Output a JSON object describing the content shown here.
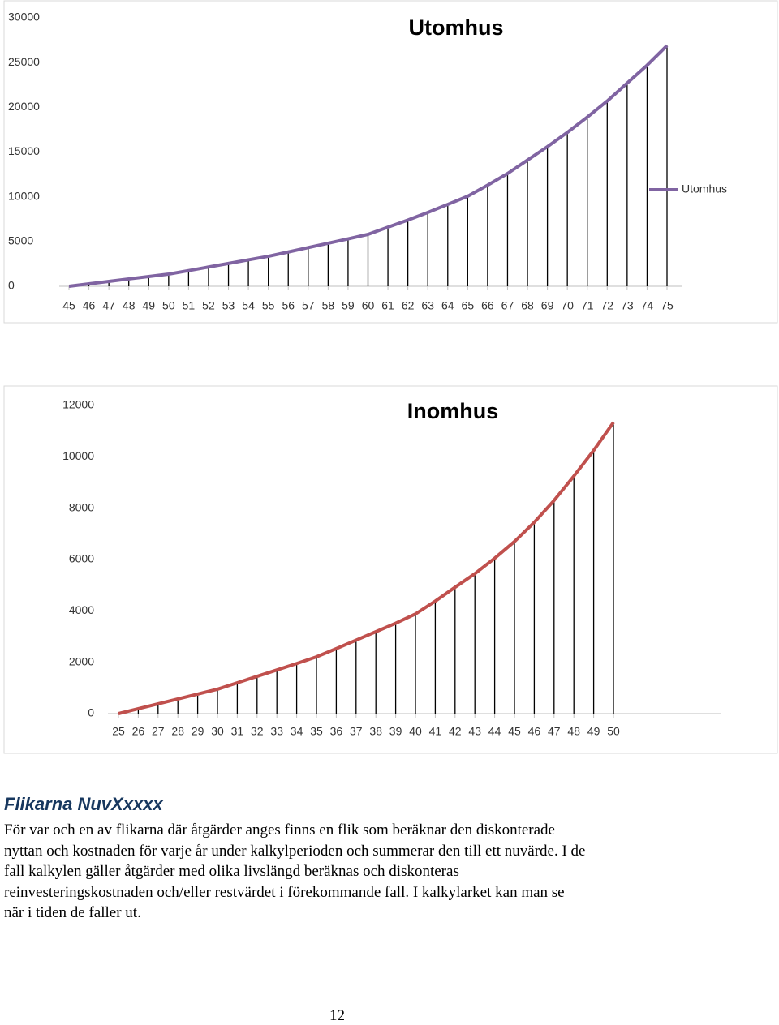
{
  "chart_data": [
    {
      "type": "line",
      "title": "Utomhus",
      "categories": [
        "45",
        "46",
        "47",
        "48",
        "49",
        "50",
        "51",
        "52",
        "53",
        "54",
        "55",
        "56",
        "57",
        "58",
        "59",
        "60",
        "61",
        "62",
        "63",
        "64",
        "65",
        "66",
        "67",
        "68",
        "69",
        "70",
        "71",
        "72",
        "73",
        "74",
        "75"
      ],
      "series": [
        {
          "name": "Utomhus",
          "color": "#8064a2",
          "values": [
            0,
            270,
            540,
            820,
            1090,
            1360,
            1750,
            2150,
            2550,
            2950,
            3350,
            3830,
            4320,
            4810,
            5300,
            5800,
            6600,
            7400,
            8250,
            9150,
            10060,
            11300,
            12600,
            14100,
            15600,
            17200,
            18900,
            20700,
            22700,
            24700,
            26900
          ]
        }
      ],
      "ylim": [
        0,
        30000
      ],
      "yticks": [
        0,
        5000,
        10000,
        15000,
        20000,
        25000,
        30000
      ],
      "legend": "right",
      "drop_lines": true
    },
    {
      "type": "line",
      "title": "Inomhus",
      "categories": [
        "25",
        "26",
        "27",
        "28",
        "29",
        "30",
        "31",
        "32",
        "33",
        "34",
        "35",
        "36",
        "37",
        "38",
        "39",
        "40",
        "41",
        "42",
        "43",
        "44",
        "45",
        "46",
        "47",
        "48",
        "49",
        "50"
      ],
      "series": [
        {
          "color": "#c0504d",
          "values": [
            0,
            190,
            380,
            570,
            760,
            950,
            1200,
            1450,
            1700,
            1950,
            2210,
            2530,
            2860,
            3190,
            3520,
            3880,
            4380,
            4920,
            5450,
            6050,
            6700,
            7450,
            8300,
            9250,
            10250,
            11340
          ]
        }
      ],
      "ylim": [
        0,
        12000
      ],
      "yticks": [
        0,
        2000,
        4000,
        6000,
        8000,
        10000,
        12000
      ],
      "drop_lines": true
    }
  ],
  "heading": "Flikarna NuvXxxxx",
  "paragraph": [
    "För var och en av flikarna där åtgärder anges finns en flik som beräknar den diskonterade",
    "nyttan och kostnaden för varje år under kalkylperioden och summerar den till ett nuvärde. I de",
    "fall kalkylen gäller åtgärder med olika livslängd beräknas och diskonteras",
    "reinvesteringskostnaden och/eller restvärdet i förekommande fall. I kalkylarket kan man se",
    "när i tiden de faller ut."
  ],
  "page_number": "12"
}
